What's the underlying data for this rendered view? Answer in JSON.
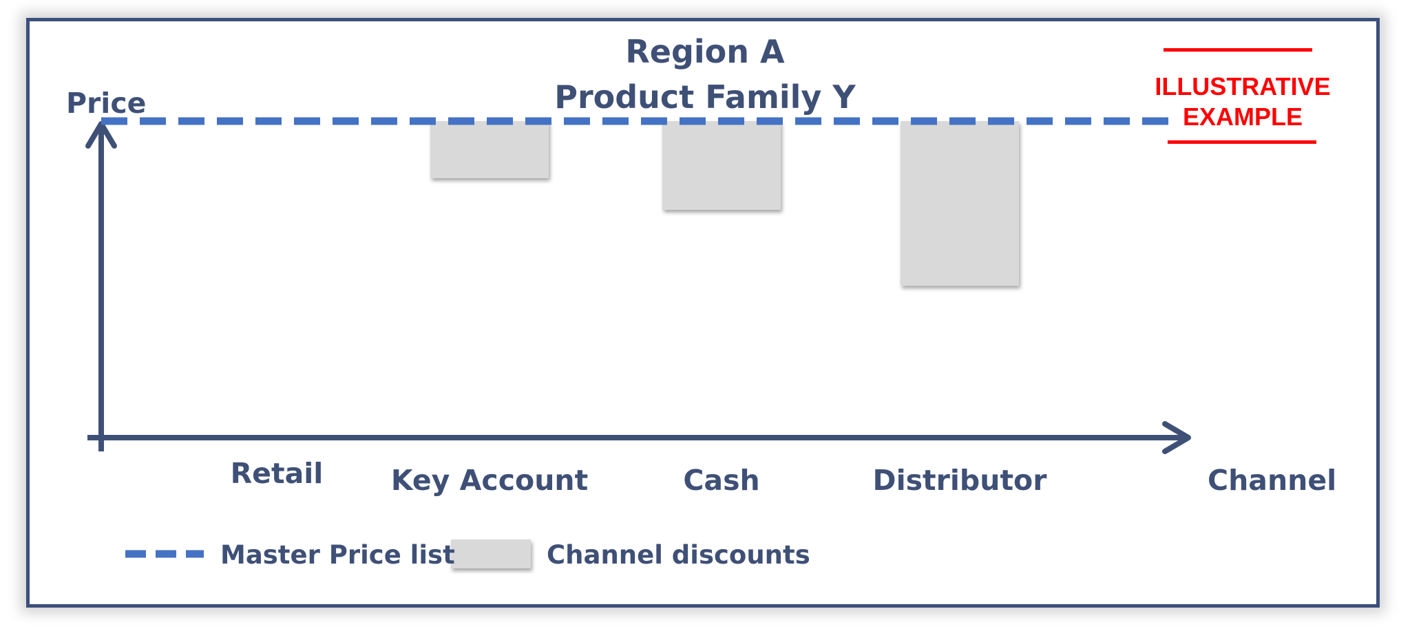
{
  "chart_data": {
    "type": "bar",
    "title": [
      "Region A",
      "Product Family Y"
    ],
    "xlabel": "Channel",
    "ylabel": "Price",
    "categories": [
      "Retail",
      "Key Account",
      "Cash",
      "Distributor"
    ],
    "series": [
      {
        "name": "Channel discounts",
        "values": [
          0,
          18,
          28,
          52
        ]
      }
    ],
    "reference_line": {
      "name": "Master Price list",
      "value": 100,
      "style": "dashed"
    },
    "ylim": [
      0,
      110
    ],
    "grid": false,
    "legend_position": "bottom-left"
  },
  "stamp": {
    "lines": [
      "ILLUSTRATIVE",
      "EXAMPLE"
    ]
  },
  "colors": {
    "axis": "#3f5077",
    "frame": "#3b4f7d",
    "master_line": "#4472c4",
    "discount_bar": "#d9d9d9",
    "stamp": "#ff0000"
  }
}
